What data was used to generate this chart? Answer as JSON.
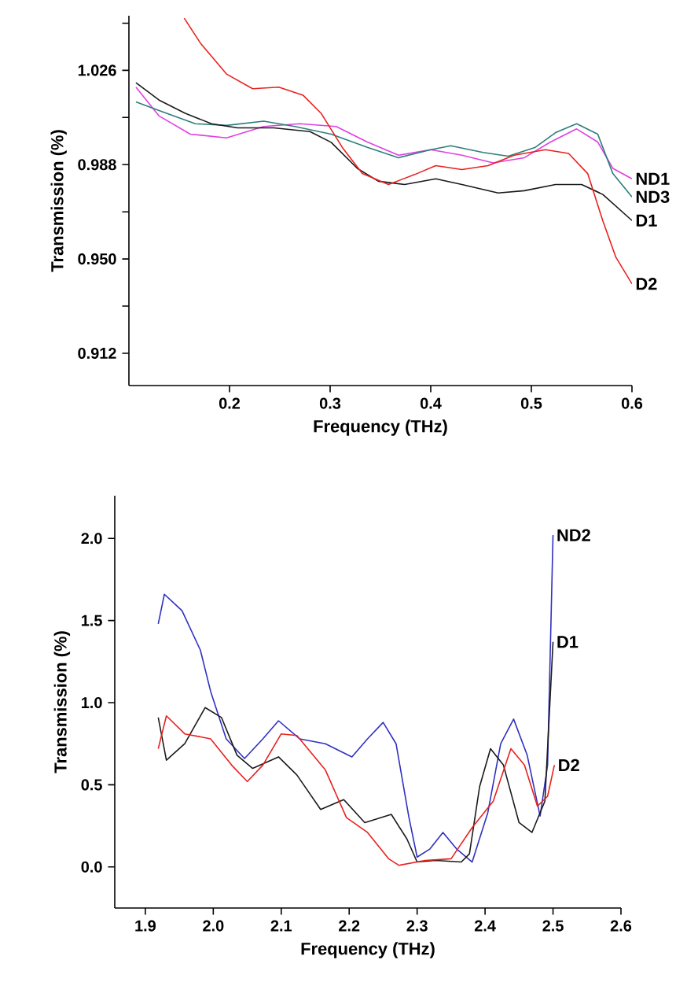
{
  "chart_data": [
    {
      "type": "line",
      "xlabel": "Frequency (THz)",
      "ylabel": "Transmission (%)",
      "xlim": [
        0.1,
        0.6
      ],
      "ylim": [
        0.899,
        1.048
      ],
      "xticks": [
        0.2,
        0.3,
        0.4,
        0.5,
        0.6
      ],
      "yticks": [
        {
          "value": 0.912,
          "label": "0.912"
        },
        {
          "value": 0.931,
          "label": null
        },
        {
          "value": 0.95,
          "label": "0.950"
        },
        {
          "value": 0.969,
          "label": null
        },
        {
          "value": 0.988,
          "label": "0.988"
        },
        {
          "value": 1.007,
          "label": null
        },
        {
          "value": 1.026,
          "label": "1.026"
        },
        {
          "value": 1.045,
          "label": null
        }
      ],
      "grid": false,
      "series": [
        {
          "name": "ND1",
          "color": "#e040e0",
          "x": [
            0.107,
            0.13,
            0.161,
            0.197,
            0.234,
            0.27,
            0.306,
            0.337,
            0.368,
            0.4,
            0.431,
            0.462,
            0.493,
            0.519,
            0.545,
            0.566,
            0.581,
            0.6
          ],
          "values": [
            1.0192,
            1.0076,
            1.0003,
            0.9988,
            1.0034,
            1.0045,
            1.0034,
            0.9971,
            0.9918,
            0.994,
            0.9918,
            0.9887,
            0.9908,
            0.9971,
            1.0024,
            0.9971,
            0.9865,
            0.9823
          ]
        },
        {
          "name": "ND3",
          "color": "#2a7f7a",
          "x": [
            0.107,
            0.13,
            0.166,
            0.197,
            0.234,
            0.265,
            0.301,
            0.337,
            0.368,
            0.4,
            0.42,
            0.452,
            0.477,
            0.504,
            0.524,
            0.545,
            0.566,
            0.581,
            0.6
          ],
          "values": [
            1.0133,
            1.0098,
            1.0045,
            1.0038,
            1.0055,
            1.0034,
            1.0003,
            0.995,
            0.9908,
            0.994,
            0.9956,
            0.9929,
            0.9914,
            0.995,
            1.0009,
            1.0045,
            1.0003,
            0.9844,
            0.975
          ]
        },
        {
          "name": "D1",
          "color": "#1a1a1a",
          "x": [
            0.107,
            0.13,
            0.156,
            0.182,
            0.208,
            0.244,
            0.28,
            0.301,
            0.327,
            0.348,
            0.374,
            0.405,
            0.431,
            0.467,
            0.493,
            0.524,
            0.55,
            0.571,
            0.6
          ],
          "values": [
            1.021,
            1.014,
            1.0087,
            1.0045,
            1.0028,
            1.0028,
            1.0013,
            0.997,
            0.9865,
            0.9813,
            0.98,
            0.9823,
            0.98,
            0.9766,
            0.9775,
            0.98,
            0.98,
            0.976,
            0.9655
          ]
        },
        {
          "name": "D2",
          "color": "#e8211e",
          "x": [
            0.155,
            0.171,
            0.197,
            0.223,
            0.249,
            0.273,
            0.291,
            0.312,
            0.332,
            0.358,
            0.384,
            0.405,
            0.431,
            0.457,
            0.483,
            0.514,
            0.537,
            0.556,
            0.571,
            0.584,
            0.6
          ],
          "values": [
            1.047,
            1.037,
            1.0245,
            1.0186,
            1.0192,
            1.016,
            1.0087,
            0.995,
            0.9844,
            0.98,
            0.984,
            0.9876,
            0.986,
            0.9876,
            0.9918,
            0.994,
            0.9925,
            0.9844,
            0.9654,
            0.9507,
            0.94
          ]
        }
      ]
    },
    {
      "type": "line",
      "xlabel": "Frequency (THz)",
      "ylabel": "Transmission (%)",
      "xlim": [
        1.855,
        2.6
      ],
      "ylim": [
        -0.25,
        2.26
      ],
      "xticks": [
        1.9,
        {
          "value": 2.0,
          "label": "2.0"
        },
        2.1,
        2.2,
        2.3,
        2.4,
        2.5,
        2.6
      ],
      "yticks": [
        {
          "value": 0.0,
          "label": "0.0"
        },
        0.5,
        {
          "value": 1.0,
          "label": "1.0"
        },
        1.5,
        {
          "value": 2.0,
          "label": "2.0"
        }
      ],
      "grid": false,
      "series": [
        {
          "name": "ND2",
          "color": "#3030c0",
          "x": [
            1.919,
            1.928,
            1.954,
            1.981,
            1.996,
            2.019,
            2.046,
            2.073,
            2.096,
            2.127,
            2.165,
            2.204,
            2.227,
            2.25,
            2.269,
            2.288,
            2.3,
            2.319,
            2.338,
            2.358,
            2.381,
            2.404,
            2.423,
            2.442,
            2.462,
            2.481,
            2.492,
            2.5
          ],
          "values": [
            1.48,
            1.66,
            1.56,
            1.32,
            1.07,
            0.78,
            0.66,
            0.78,
            0.89,
            0.78,
            0.75,
            0.67,
            0.78,
            0.88,
            0.75,
            0.3,
            0.06,
            0.11,
            0.21,
            0.11,
            0.03,
            0.33,
            0.75,
            0.9,
            0.68,
            0.31,
            0.62,
            2.02
          ]
        },
        {
          "name": "D1",
          "color": "#1a1a1a",
          "x": [
            1.919,
            1.931,
            1.958,
            1.988,
            2.012,
            2.035,
            2.058,
            2.096,
            2.123,
            2.158,
            2.192,
            2.223,
            2.262,
            2.285,
            2.3,
            2.327,
            2.365,
            2.377,
            2.392,
            2.408,
            2.427,
            2.45,
            2.469,
            2.488,
            2.5
          ],
          "values": [
            0.91,
            0.65,
            0.75,
            0.97,
            0.91,
            0.68,
            0.6,
            0.67,
            0.56,
            0.35,
            0.41,
            0.27,
            0.32,
            0.17,
            0.03,
            0.04,
            0.03,
            0.08,
            0.49,
            0.72,
            0.62,
            0.27,
            0.21,
            0.4,
            1.37
          ]
        },
        {
          "name": "D2",
          "color": "#e8211e",
          "x": [
            1.919,
            1.931,
            1.958,
            1.996,
            2.027,
            2.05,
            2.073,
            2.1,
            2.123,
            2.165,
            2.196,
            2.227,
            2.258,
            2.273,
            2.312,
            2.35,
            2.381,
            2.412,
            2.438,
            2.458,
            2.477,
            2.492,
            2.502
          ],
          "values": [
            0.72,
            0.92,
            0.81,
            0.78,
            0.62,
            0.52,
            0.62,
            0.81,
            0.8,
            0.59,
            0.3,
            0.21,
            0.05,
            0.01,
            0.04,
            0.05,
            0.24,
            0.4,
            0.72,
            0.62,
            0.37,
            0.43,
            0.62
          ]
        }
      ]
    }
  ]
}
